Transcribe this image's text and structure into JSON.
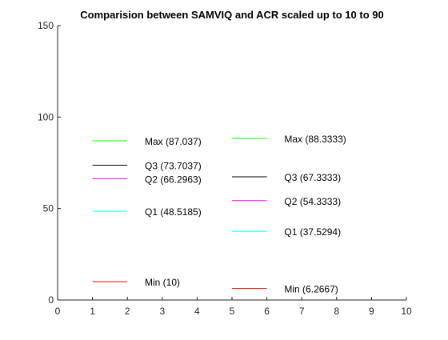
{
  "chart_data": {
    "type": "line",
    "title": "Comparision between SAMVIQ and ACR scaled up to 10 to 90",
    "xlabel": "",
    "ylabel": "",
    "xlim": [
      0,
      10
    ],
    "ylim": [
      0,
      150
    ],
    "x_ticks": [
      "0",
      "1",
      "2",
      "3",
      "4",
      "5",
      "6",
      "7",
      "8",
      "9",
      "10"
    ],
    "y_ticks": [
      "0",
      "50",
      "100",
      "150"
    ],
    "grid": false,
    "groups": [
      {
        "x_start": 1,
        "x_end": 2,
        "label_x": 2.5,
        "markers": [
          {
            "label": "Max (87.037)",
            "value": 87.037,
            "color": "#00ff00"
          },
          {
            "label": "Q3 (73.7037)",
            "value": 73.7037,
            "color": "#000000"
          },
          {
            "label": "Q2 (66.2963)",
            "value": 66.2963,
            "color": "#ff00ff"
          },
          {
            "label": "Q1 (48.5185)",
            "value": 48.5185,
            "color": "#00ffff"
          },
          {
            "label": "Min (10)",
            "value": 10,
            "color": "#ff0000"
          }
        ]
      },
      {
        "x_start": 5,
        "x_end": 6,
        "label_x": 6.5,
        "markers": [
          {
            "label": "Max (88.3333)",
            "value": 88.3333,
            "color": "#00ff00"
          },
          {
            "label": "Q3 (67.3333)",
            "value": 67.3333,
            "color": "#000000"
          },
          {
            "label": "Q2 (54.3333)",
            "value": 54.3333,
            "color": "#ff00ff"
          },
          {
            "label": "Q1 (37.5294)",
            "value": 37.5294,
            "color": "#00ffff"
          },
          {
            "label": "Min (6.2667)",
            "value": 6.2667,
            "color": "#ff0000"
          }
        ]
      }
    ]
  }
}
